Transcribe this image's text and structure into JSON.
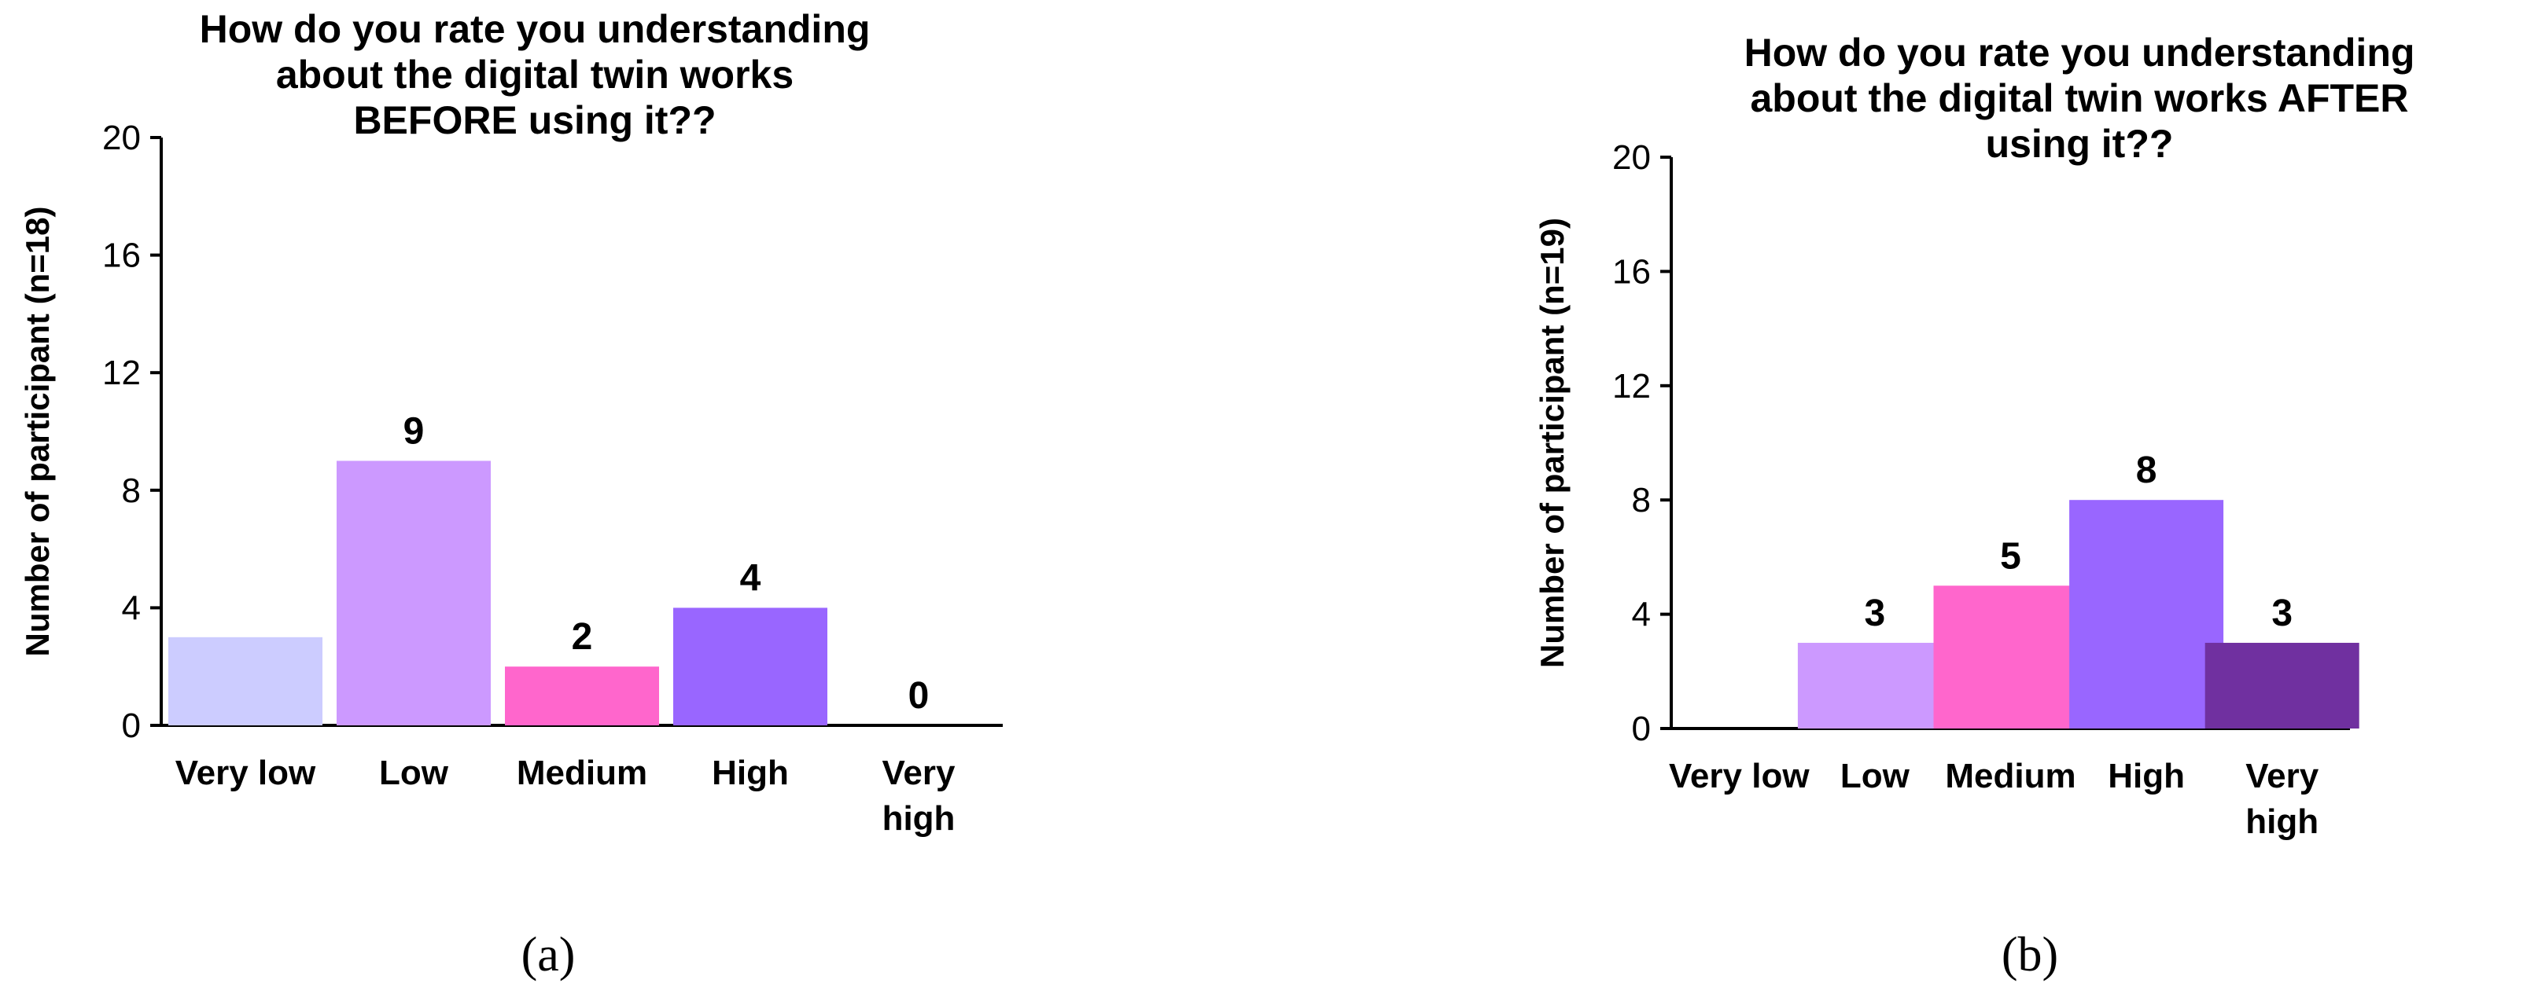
{
  "chart_data": [
    {
      "type": "bar",
      "title": "How do you rate you understanding\nabout the digital twin works\nBEFORE using it??",
      "ylabel": "Number of participant (n=18)",
      "xlabel": "",
      "ylim": [
        0,
        20
      ],
      "yticks": [
        0,
        4,
        8,
        12,
        16,
        20
      ],
      "categories": [
        "Very low",
        "Low",
        "Medium",
        "High",
        "Very\nhigh"
      ],
      "values": [
        3,
        9,
        2,
        4,
        0
      ],
      "data_labels": [
        "",
        "9",
        "2",
        "4",
        "0"
      ],
      "colors": [
        "#ccccff",
        "#cc99ff",
        "#ff66cc",
        "#9966ff",
        "#7030a0"
      ],
      "grid": false,
      "caption": "(a)"
    },
    {
      "type": "bar",
      "title": "How do you rate you understanding\nabout the digital twin works AFTER\nusing it??",
      "ylabel": "Number of participant (n=19)",
      "xlabel": "",
      "ylim": [
        0,
        20
      ],
      "yticks": [
        0,
        4,
        8,
        12,
        16,
        20
      ],
      "categories": [
        "Very low",
        "Low",
        "Medium",
        "High",
        "Very\nhigh"
      ],
      "values": [
        0,
        3,
        5,
        8,
        3
      ],
      "data_labels": [
        "",
        "3",
        "5",
        "8",
        "3"
      ],
      "colors": [
        "#ccccff",
        "#cc99ff",
        "#ff66cc",
        "#9966ff",
        "#7030a0"
      ],
      "grid": false,
      "caption": "(b)"
    }
  ]
}
